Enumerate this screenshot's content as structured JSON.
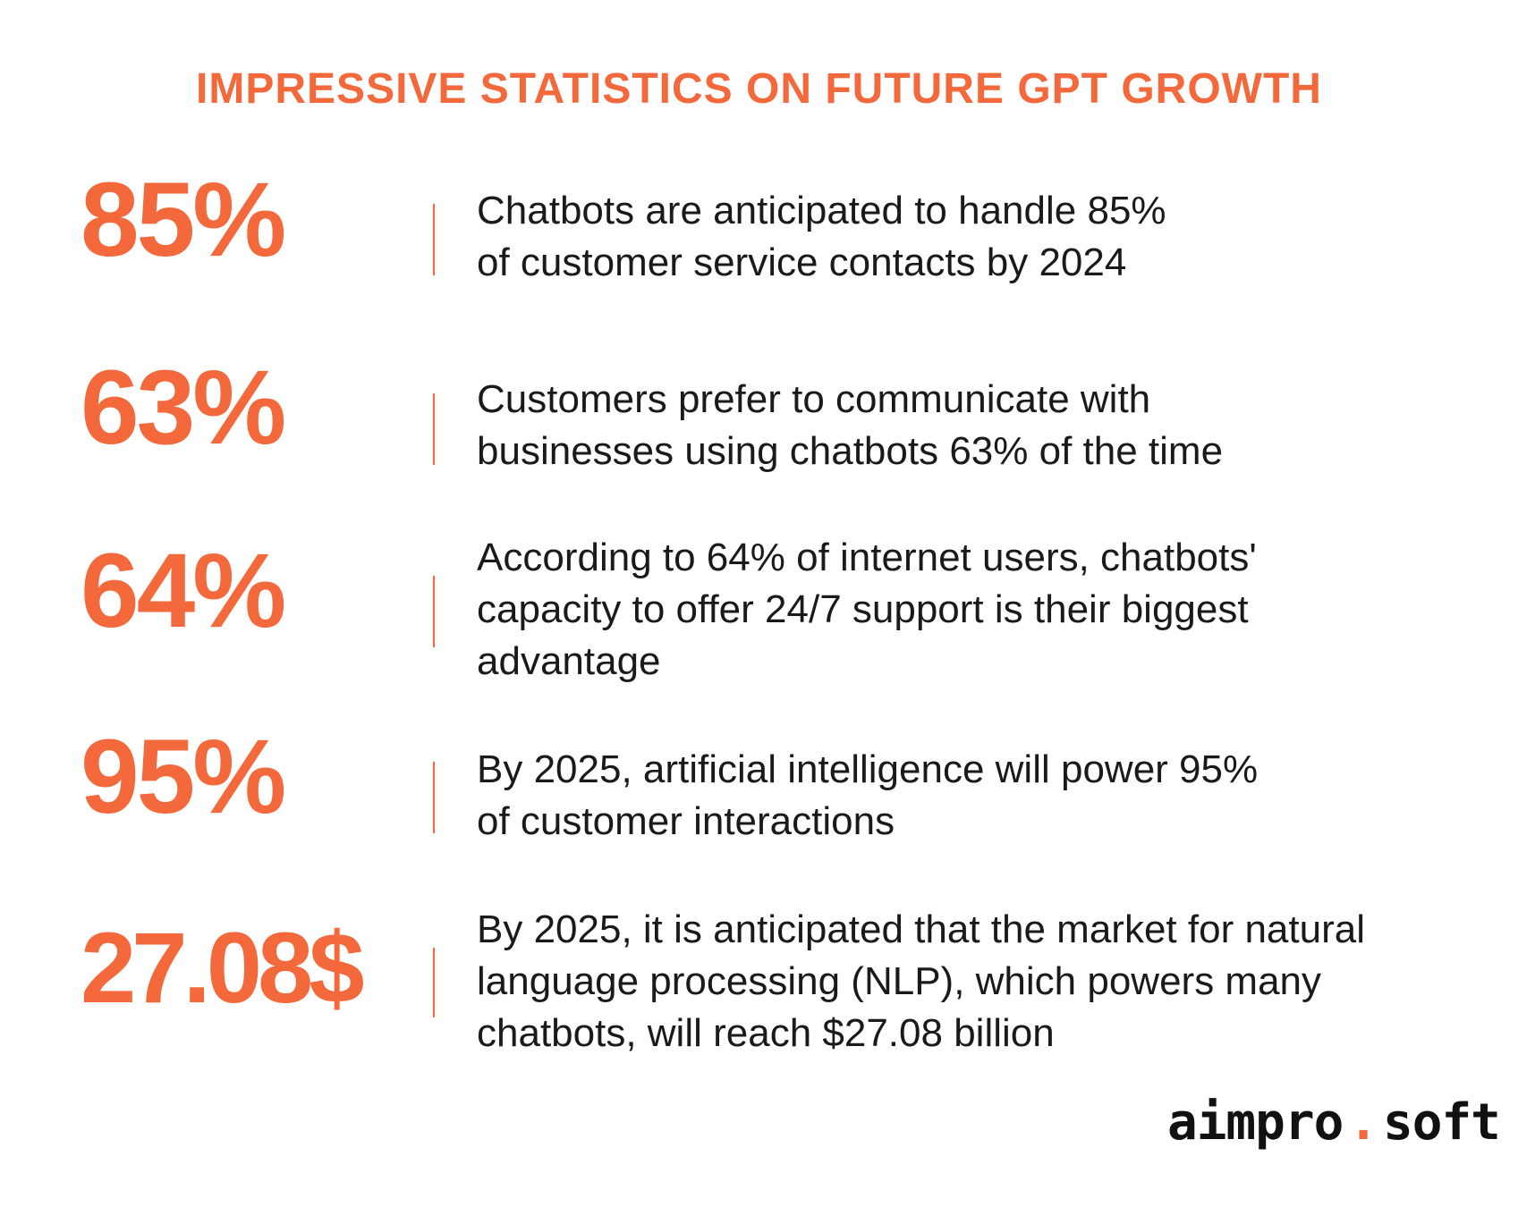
{
  "title": "IMPRESSIVE STATISTICS ON FUTURE GPT GROWTH",
  "accent_color": "#f4693c",
  "text_color": "#1a1a1a",
  "stats": [
    {
      "value": "85%",
      "lines": [
        "Chatbots are anticipated to handle 85%",
        "of customer service contacts by 2024"
      ]
    },
    {
      "value": "63%",
      "lines": [
        "Customers prefer to communicate with",
        "businesses using chatbots 63% of the time"
      ]
    },
    {
      "value": "64%",
      "lines": [
        "According to 64% of internet users, chatbots'",
        "capacity to offer 24/7 support is their biggest",
        "advantage"
      ]
    },
    {
      "value": "95%",
      "lines": [
        "By 2025, artificial intelligence will power 95%",
        "of customer interactions"
      ]
    },
    {
      "value": "27.08$",
      "lines": [
        "By 2025, it is anticipated that the market for natural",
        "language processing (NLP), which powers many",
        "chatbots, will reach $27.08 billion"
      ]
    }
  ],
  "logo": {
    "part1": "aimpro",
    "dot": ".",
    "part2": "soft"
  }
}
